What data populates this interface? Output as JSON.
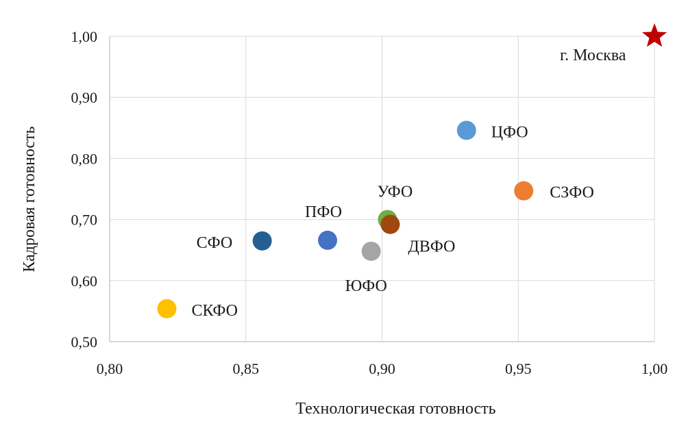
{
  "chart_data": {
    "type": "scatter",
    "title": "",
    "xlabel": "Технологическая готовность",
    "ylabel": "Кадровая готовность",
    "xlim": [
      0.8,
      1.0
    ],
    "ylim": [
      0.5,
      1.0
    ],
    "x_ticks": [
      "0,80",
      "0,85",
      "0,90",
      "0,95",
      "1,00"
    ],
    "x_tick_values": [
      0.8,
      0.85,
      0.9,
      0.95,
      1.0
    ],
    "y_ticks": [
      "0,50",
      "0,60",
      "0,70",
      "0,80",
      "0,90",
      "1,00"
    ],
    "y_tick_values": [
      0.5,
      0.6,
      0.7,
      0.8,
      0.9,
      1.0
    ],
    "grid": true,
    "legend": "none",
    "points": [
      {
        "label": "г. Москва",
        "x": 1.0,
        "y": 1.0,
        "color": "#c00000",
        "marker": "star"
      },
      {
        "label": "ЦФО",
        "x": 0.931,
        "y": 0.846,
        "color": "#5b9bd5",
        "marker": "circle"
      },
      {
        "label": "СЗФО",
        "x": 0.952,
        "y": 0.747,
        "color": "#ed7d31",
        "marker": "circle"
      },
      {
        "label": "УФО",
        "x": 0.902,
        "y": 0.7,
        "color": "#70ad47",
        "marker": "circle"
      },
      {
        "label": "ДВФО",
        "x": 0.903,
        "y": 0.692,
        "color": "#9e480e",
        "marker": "circle"
      },
      {
        "label": "ПФО",
        "x": 0.88,
        "y": 0.666,
        "color": "#4472c4",
        "marker": "circle"
      },
      {
        "label": "СФО",
        "x": 0.856,
        "y": 0.665,
        "color": "#255e91",
        "marker": "circle"
      },
      {
        "label": "ЮФО",
        "x": 0.896,
        "y": 0.648,
        "color": "#a5a5a5",
        "marker": "circle"
      },
      {
        "label": "СКФО",
        "x": 0.821,
        "y": 0.554,
        "color": "#ffc000",
        "marker": "circle"
      }
    ]
  }
}
